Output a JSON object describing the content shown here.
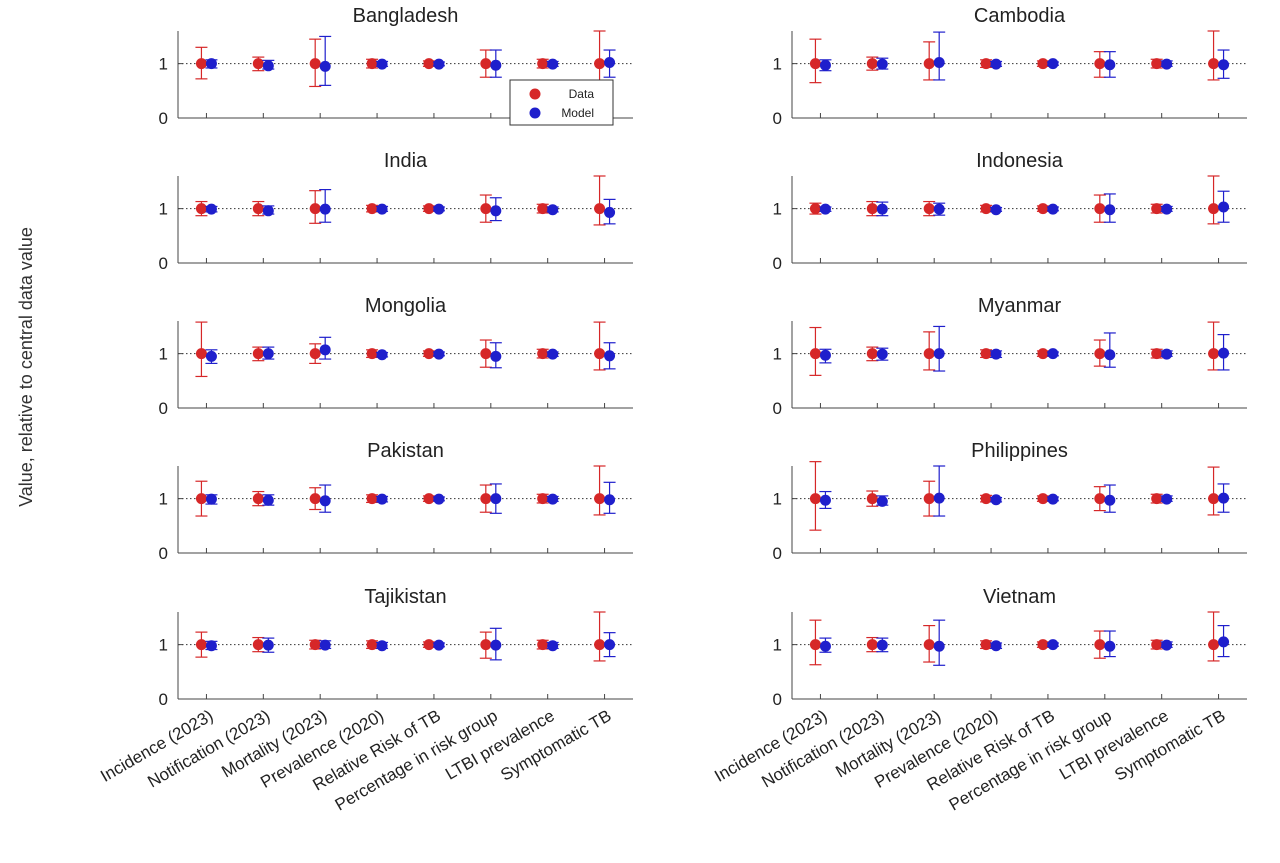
{
  "chart_data": {
    "type": "scatter",
    "ylabel": "Value, relative to central data value",
    "categories": [
      "Incidence (2023)",
      "Notification (2023)",
      "Mortality (2023)",
      "Prevalence (2020)",
      "Relative Risk of TB",
      "Percentage in risk group",
      "LTBI prevalence",
      "Symptomatic TB"
    ],
    "yticks": [
      0,
      1
    ],
    "ylim": [
      0,
      1.6
    ],
    "reference_line_y": 1,
    "legend": {
      "entries": [
        "Data",
        "Model"
      ],
      "placement": "inside, lower-right of first panel"
    },
    "colors": {
      "Data": "#d62728",
      "Model": "#1f1fcc",
      "axis": "#444444"
    },
    "panels": [
      {
        "title": "Bangladesh",
        "data": {
          "center": [
            1,
            1,
            1,
            1,
            1,
            1,
            1,
            1
          ],
          "lower": [
            0.72,
            0.87,
            0.58,
            0.92,
            0.95,
            0.75,
            0.92,
            0.68
          ],
          "upper": [
            1.3,
            1.12,
            1.45,
            1.08,
            1.05,
            1.25,
            1.08,
            1.6
          ]
        },
        "model": {
          "center": [
            1,
            0.96,
            0.95,
            0.99,
            0.99,
            0.97,
            0.99,
            1.02
          ],
          "lower": [
            0.92,
            0.9,
            0.6,
            0.95,
            0.96,
            0.75,
            0.95,
            0.75
          ],
          "upper": [
            1.07,
            1.06,
            1.5,
            1.04,
            1.03,
            1.25,
            1.04,
            1.25
          ]
        }
      },
      {
        "title": "Cambodia",
        "data": {
          "center": [
            1,
            1,
            1,
            1,
            1,
            1,
            1,
            1
          ],
          "lower": [
            0.65,
            0.88,
            0.7,
            0.93,
            0.95,
            0.75,
            0.92,
            0.7
          ],
          "upper": [
            1.45,
            1.12,
            1.4,
            1.07,
            1.05,
            1.22,
            1.08,
            1.6
          ]
        },
        "model": {
          "center": [
            0.97,
            0.99,
            1.02,
            0.99,
            1,
            0.98,
            0.99,
            0.98
          ],
          "lower": [
            0.87,
            0.9,
            0.7,
            0.95,
            0.97,
            0.75,
            0.95,
            0.73
          ],
          "upper": [
            1.07,
            1.1,
            1.58,
            1.04,
            1.03,
            1.22,
            1.05,
            1.25
          ]
        }
      },
      {
        "title": "India",
        "data": {
          "center": [
            1,
            1,
            1,
            1,
            1,
            1,
            1,
            1
          ],
          "lower": [
            0.87,
            0.87,
            0.73,
            0.94,
            0.95,
            0.75,
            0.92,
            0.7
          ],
          "upper": [
            1.13,
            1.13,
            1.33,
            1.06,
            1.05,
            1.25,
            1.08,
            1.6
          ]
        },
        "model": {
          "center": [
            0.99,
            0.96,
            0.99,
            0.99,
            0.99,
            0.96,
            0.98,
            0.93
          ],
          "lower": [
            0.94,
            0.9,
            0.75,
            0.95,
            0.96,
            0.78,
            0.94,
            0.72
          ],
          "upper": [
            1.04,
            1.05,
            1.35,
            1.04,
            1.03,
            1.2,
            1.03,
            1.17
          ]
        }
      },
      {
        "title": "Indonesia",
        "data": {
          "center": [
            1,
            1,
            1,
            1,
            1,
            1,
            1,
            1
          ],
          "lower": [
            0.9,
            0.87,
            0.87,
            0.94,
            0.95,
            0.75,
            0.92,
            0.72
          ],
          "upper": [
            1.1,
            1.13,
            1.13,
            1.06,
            1.05,
            1.25,
            1.08,
            1.6
          ]
        },
        "model": {
          "center": [
            0.99,
            0.99,
            0.99,
            0.98,
            0.99,
            0.98,
            0.99,
            1.03
          ],
          "lower": [
            0.95,
            0.87,
            0.88,
            0.95,
            0.96,
            0.75,
            0.95,
            0.75
          ],
          "upper": [
            1.03,
            1.12,
            1.1,
            1.02,
            1.03,
            1.27,
            1.04,
            1.32
          ]
        }
      },
      {
        "title": "Mongolia",
        "data": {
          "center": [
            1,
            1,
            1,
            1,
            1,
            1,
            1,
            1
          ],
          "lower": [
            0.58,
            0.87,
            0.82,
            0.93,
            0.95,
            0.75,
            0.92,
            0.7
          ],
          "upper": [
            1.58,
            1.12,
            1.18,
            1.07,
            1.05,
            1.25,
            1.08,
            1.58
          ]
        },
        "model": {
          "center": [
            0.95,
            1,
            1.07,
            0.98,
            0.99,
            0.95,
            0.99,
            0.96
          ],
          "lower": [
            0.82,
            0.9,
            0.9,
            0.94,
            0.96,
            0.74,
            0.95,
            0.72
          ],
          "upper": [
            1.07,
            1.12,
            1.3,
            1.02,
            1.03,
            1.2,
            1.03,
            1.2
          ]
        }
      },
      {
        "title": "Myanmar",
        "data": {
          "center": [
            1,
            1,
            1,
            1,
            1,
            1,
            1,
            1
          ],
          "lower": [
            0.6,
            0.87,
            0.7,
            0.93,
            0.95,
            0.77,
            0.92,
            0.7
          ],
          "upper": [
            1.48,
            1.12,
            1.4,
            1.07,
            1.05,
            1.25,
            1.08,
            1.58
          ]
        },
        "model": {
          "center": [
            0.97,
            0.99,
            1,
            0.99,
            1,
            0.98,
            0.99,
            1.01
          ],
          "lower": [
            0.83,
            0.88,
            0.68,
            0.93,
            0.96,
            0.75,
            0.95,
            0.7
          ],
          "upper": [
            1.08,
            1.1,
            1.5,
            1.05,
            1.03,
            1.38,
            1.05,
            1.35
          ]
        }
      },
      {
        "title": "Pakistan",
        "data": {
          "center": [
            1,
            1,
            1,
            1,
            1,
            1,
            1,
            1
          ],
          "lower": [
            0.68,
            0.87,
            0.8,
            0.93,
            0.95,
            0.75,
            0.92,
            0.7
          ],
          "upper": [
            1.32,
            1.13,
            1.2,
            1.07,
            1.05,
            1.25,
            1.08,
            1.6
          ]
        },
        "model": {
          "center": [
            0.99,
            0.97,
            0.96,
            0.99,
            0.99,
            1,
            0.99,
            0.98
          ],
          "lower": [
            0.9,
            0.88,
            0.75,
            0.94,
            0.96,
            0.73,
            0.95,
            0.73
          ],
          "upper": [
            1.07,
            1.07,
            1.25,
            1.04,
            1.03,
            1.27,
            1.04,
            1.3
          ]
        }
      },
      {
        "title": "Philippines",
        "data": {
          "center": [
            1,
            1,
            1,
            1,
            1,
            1,
            1,
            1
          ],
          "lower": [
            0.42,
            0.86,
            0.68,
            0.94,
            0.95,
            0.78,
            0.92,
            0.7
          ],
          "upper": [
            1.68,
            1.14,
            1.32,
            1.06,
            1.05,
            1.22,
            1.08,
            1.58
          ]
        },
        "model": {
          "center": [
            0.97,
            0.95,
            1.01,
            0.98,
            0.99,
            0.97,
            0.99,
            1.01
          ],
          "lower": [
            0.82,
            0.88,
            0.68,
            0.94,
            0.96,
            0.75,
            0.95,
            0.75
          ],
          "upper": [
            1.13,
            1.05,
            1.6,
            1.02,
            1.03,
            1.25,
            1.05,
            1.27
          ]
        }
      },
      {
        "title": "Tajikistan",
        "data": {
          "center": [
            1,
            1,
            1,
            1,
            1,
            1,
            1,
            1
          ],
          "lower": [
            0.77,
            0.87,
            0.92,
            0.93,
            0.95,
            0.75,
            0.92,
            0.7
          ],
          "upper": [
            1.23,
            1.13,
            1.08,
            1.07,
            1.05,
            1.23,
            1.08,
            1.6
          ]
        },
        "model": {
          "center": [
            0.98,
            0.99,
            0.99,
            0.98,
            0.99,
            0.99,
            0.98,
            1
          ],
          "lower": [
            0.91,
            0.86,
            0.93,
            0.93,
            0.96,
            0.72,
            0.93,
            0.78
          ],
          "upper": [
            1.06,
            1.12,
            1.07,
            1.04,
            1.03,
            1.3,
            1.04,
            1.22
          ]
        }
      },
      {
        "title": "Vietnam",
        "data": {
          "center": [
            1,
            1,
            1,
            1,
            1,
            1,
            1,
            1
          ],
          "lower": [
            0.63,
            0.87,
            0.68,
            0.93,
            0.95,
            0.75,
            0.92,
            0.7
          ],
          "upper": [
            1.45,
            1.13,
            1.35,
            1.07,
            1.05,
            1.25,
            1.08,
            1.6
          ]
        },
        "model": {
          "center": [
            0.97,
            0.99,
            0.97,
            0.98,
            1,
            0.97,
            0.99,
            1.05
          ],
          "lower": [
            0.86,
            0.87,
            0.62,
            0.93,
            0.97,
            0.78,
            0.95,
            0.78
          ],
          "upper": [
            1.12,
            1.12,
            1.45,
            1.03,
            1.03,
            1.25,
            1.05,
            1.35
          ]
        }
      }
    ]
  }
}
